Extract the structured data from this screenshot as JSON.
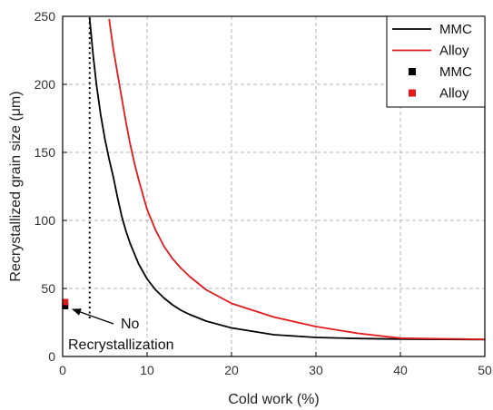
{
  "chart_data": {
    "type": "line",
    "title": "",
    "xlabel": "Cold work (%)",
    "ylabel": "Recrystallized grain size (μm)",
    "xlim": [
      0,
      50
    ],
    "ylim": [
      0,
      250
    ],
    "xticks": [
      0,
      10,
      20,
      30,
      40,
      50
    ],
    "yticks": [
      0,
      50,
      100,
      150,
      200,
      250
    ],
    "grid": true,
    "legend_position": "top-right",
    "series": [
      {
        "name": "MMC",
        "kind": "line",
        "color": "#000000",
        "x": [
          3.2,
          3.6,
          4,
          4.5,
          5,
          5.5,
          6,
          6.5,
          7,
          7.5,
          8,
          9,
          10,
          11,
          12,
          13,
          14,
          15,
          17,
          20,
          25,
          30,
          35,
          40,
          45,
          50
        ],
        "y": [
          248,
          222,
          200,
          178,
          160,
          145,
          132,
          117,
          103,
          92,
          83,
          68,
          57,
          49,
          43,
          38,
          34,
          31,
          26,
          21,
          16,
          14,
          13.2,
          12.8,
          12.6,
          12.5
        ]
      },
      {
        "name": "Alloy",
        "kind": "line",
        "color": "#e31a1c",
        "x": [
          5.5,
          6,
          6.5,
          7,
          7.5,
          8,
          8.5,
          9,
          10,
          11,
          12,
          13,
          14,
          15,
          17,
          20,
          25,
          30,
          35,
          40,
          45,
          50
        ],
        "y": [
          248,
          226,
          208,
          190,
          172,
          156,
          142,
          130,
          108,
          93,
          81,
          72,
          65,
          59,
          49,
          39,
          29,
          22,
          17,
          13.5,
          13,
          12.6
        ]
      },
      {
        "name": "MMC",
        "kind": "scatter",
        "color": "#000000",
        "x": [
          0.3
        ],
        "y": [
          37
        ]
      },
      {
        "name": "Alloy",
        "kind": "scatter",
        "color": "#e31a1c",
        "x": [
          0.3
        ],
        "y": [
          40
        ]
      }
    ],
    "reference_line": {
      "style": "dotted",
      "color": "#000000",
      "x": 3.2,
      "y_range": [
        28,
        250
      ]
    },
    "annotation": {
      "lines": [
        "No",
        "Recrystallization"
      ],
      "points_to": {
        "x": 1.2,
        "y": 35
      }
    }
  }
}
